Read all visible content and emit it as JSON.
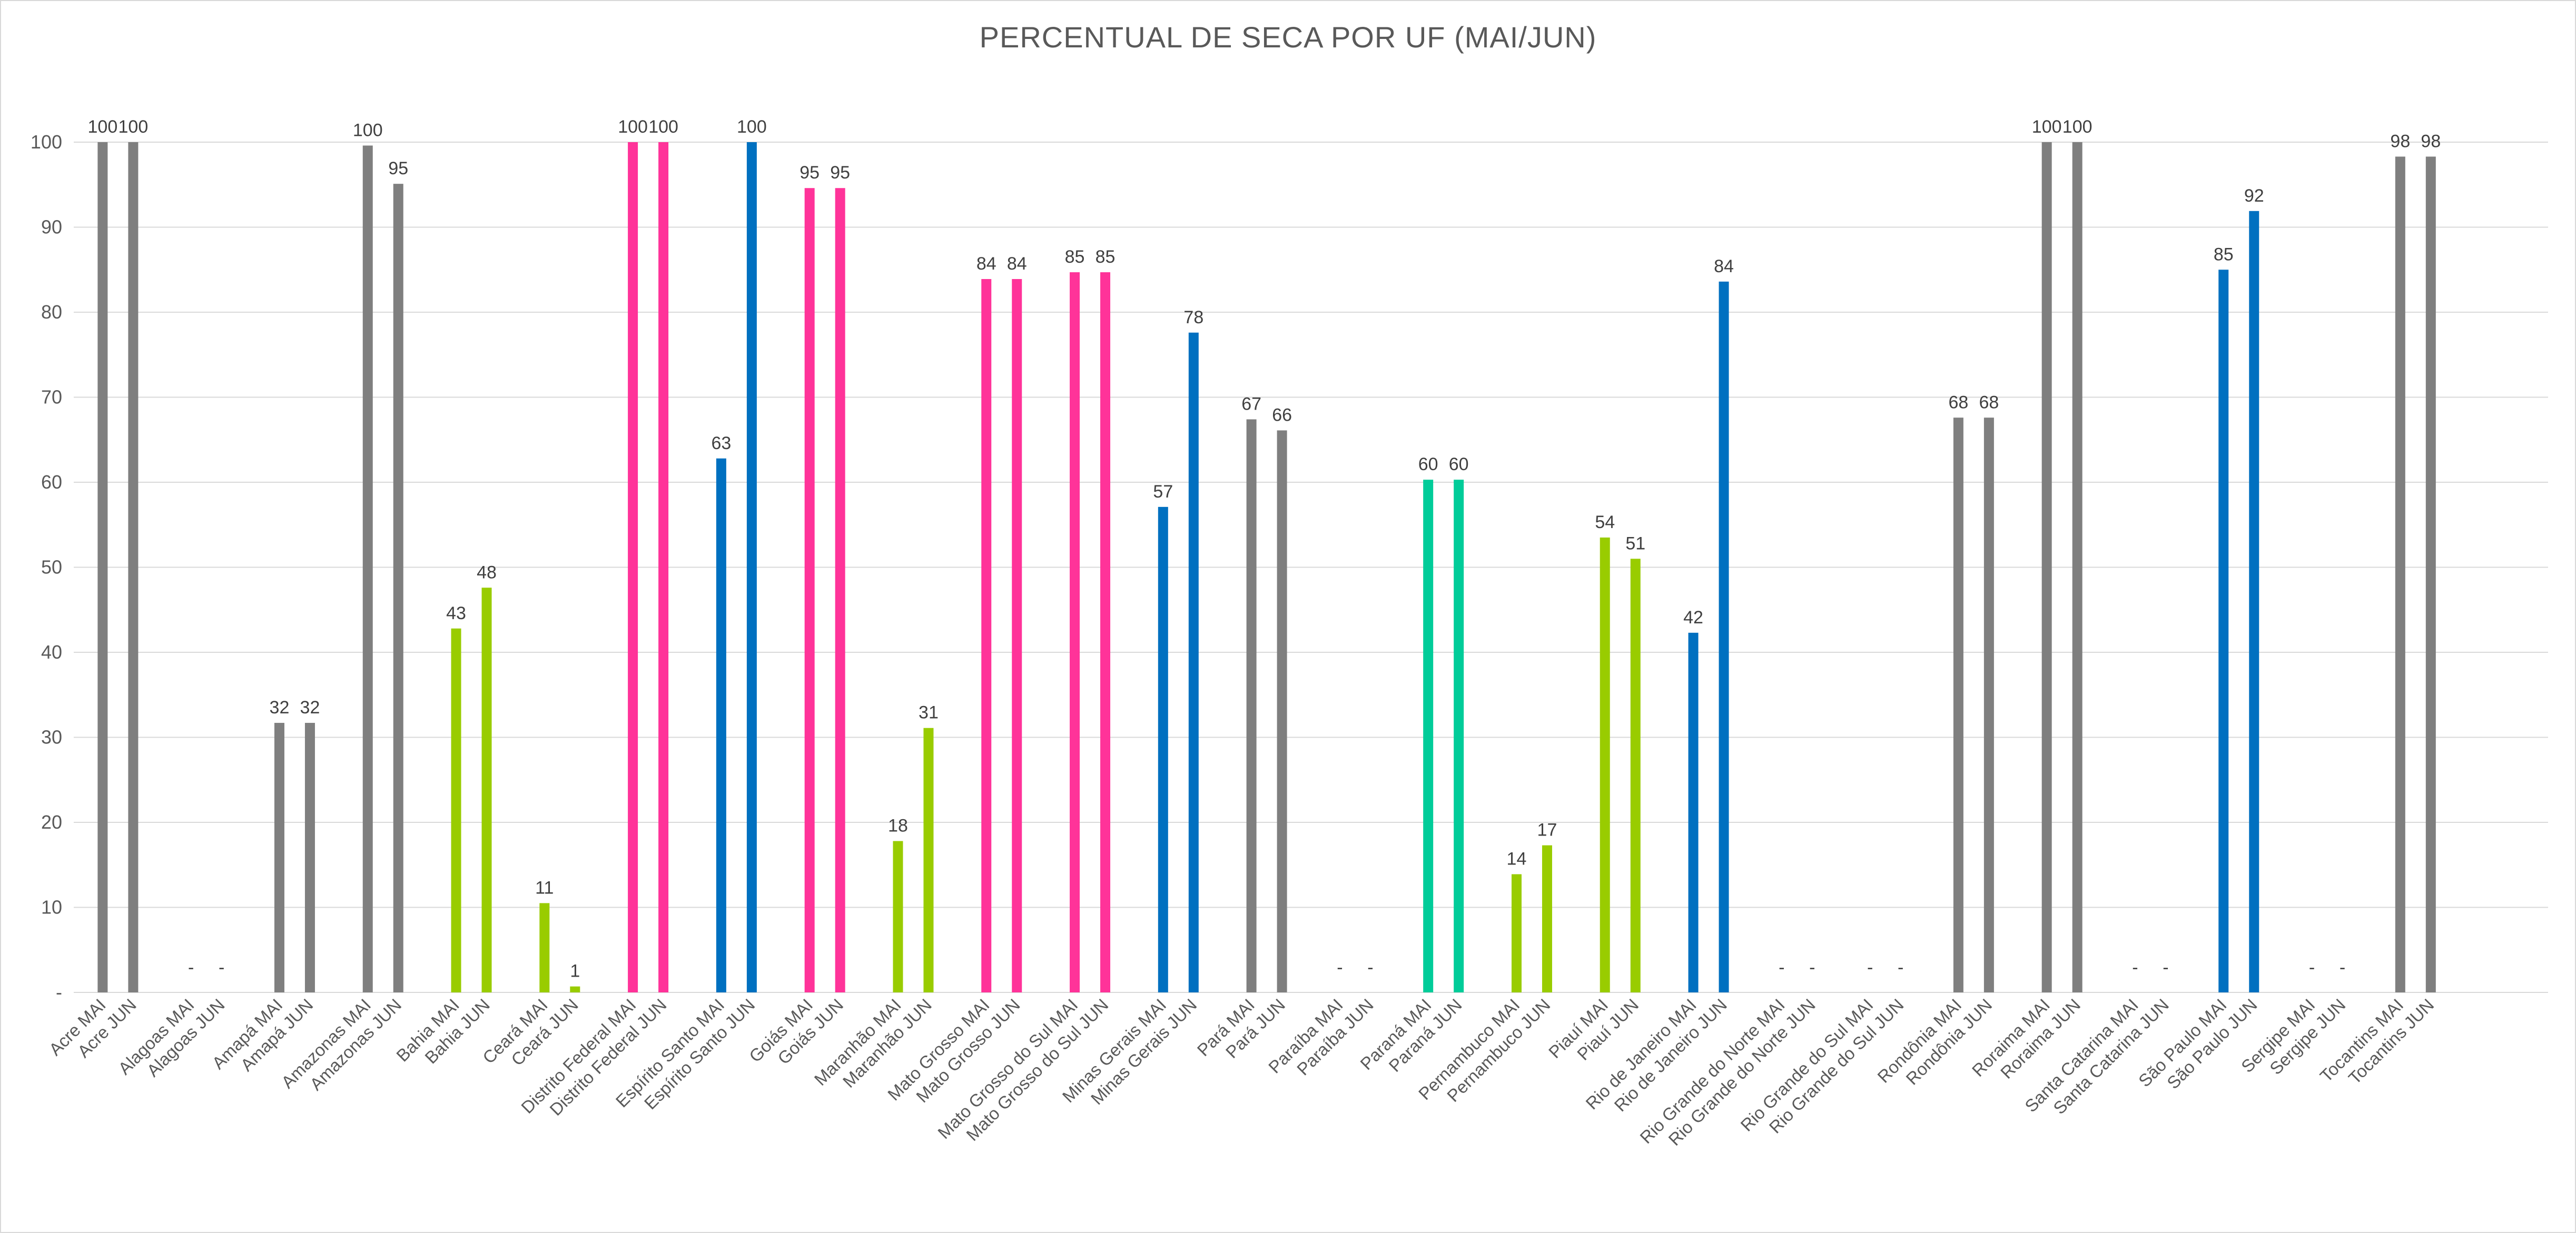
{
  "chart_data": {
    "type": "bar",
    "title": "PERCENTUAL DE SECA POR UF (MAI/JUN)",
    "xlabel": "",
    "ylabel": "",
    "ylim": [
      0,
      100
    ],
    "yticks": [
      "-",
      "10",
      "20",
      "30",
      "40",
      "50",
      "60",
      "70",
      "80",
      "90",
      "100"
    ],
    "grid": true,
    "legend": "none",
    "categories": [
      "Acre MAI",
      "Acre JUN",
      "Alagoas MAI",
      "Alagoas JUN",
      "Amapá MAI",
      "Amapá JUN",
      "Amazonas MAI",
      "Amazonas JUN",
      "Bahia MAI",
      "Bahia JUN",
      "Ceará MAI",
      "Ceará JUN",
      "Distrito Federal MAI",
      "Distrito Federal JUN",
      "Espírito Santo MAI",
      "Espírito Santo JUN",
      "Goiás MAI",
      "Goiás JUN",
      "Maranhão MAI",
      "Maranhão JUN",
      "Mato Grosso MAI",
      "Mato Grosso JUN",
      "Mato Grosso do Sul MAI",
      "Mato Grosso do Sul JUN",
      "Minas Gerais MAI",
      "Minas Gerais JUN",
      "Pará MAI",
      "Pará JUN",
      "Paraíba MAI",
      "Paraíba JUN",
      "Paraná MAI",
      "Paraná JUN",
      "Pernambuco MAI",
      "Pernambuco JUN",
      "Piauí MAI",
      "Piauí JUN",
      "Rio de Janeiro MAI",
      "Rio de Janeiro JUN",
      "Rio Grande do Norte MAI",
      "Rio Grande do Norte JUN",
      "Rio Grande do Sul MAI",
      "Rio Grande do Sul JUN",
      "Rondônia MAI",
      "Rondônia JUN",
      "Roraima MAI",
      "Roraima JUN",
      "Santa Catarina MAI",
      "Santa Catarina JUN",
      "São Paulo MAI",
      "São Paulo JUN",
      "Sergipe MAI",
      "Sergipe JUN",
      "Tocantins MAI",
      "Tocantins JUN"
    ],
    "values": [
      100,
      100,
      0,
      0,
      31.7,
      31.7,
      99.6,
      95.1,
      42.8,
      47.6,
      10.5,
      0.7,
      100,
      100,
      62.8,
      100,
      94.6,
      94.6,
      17.8,
      31.1,
      83.9,
      83.9,
      84.7,
      84.7,
      57.1,
      77.6,
      67.4,
      66.1,
      0,
      0,
      60.3,
      60.3,
      13.9,
      17.3,
      53.5,
      51.0,
      42.3,
      83.6,
      0,
      0,
      0,
      0,
      67.6,
      67.6,
      100,
      100,
      0,
      0,
      85.0,
      91.9,
      0,
      0,
      98.3,
      98.3
    ],
    "data_labels": [
      "100",
      "100",
      "-",
      "-",
      "32",
      "32",
      "100",
      "95",
      "43",
      "48",
      "11",
      "1",
      "100",
      "100",
      "63",
      "100",
      "95",
      "95",
      "18",
      "31",
      "84",
      "84",
      "85",
      "85",
      "57",
      "78",
      "67",
      "66",
      "-",
      "-",
      "60",
      "60",
      "14",
      "17",
      "54",
      "51",
      "42",
      "84",
      "-",
      "-",
      "-",
      "-",
      "68",
      "68",
      "100",
      "100",
      "-",
      "-",
      "85",
      "92",
      "-",
      "-",
      "98",
      "98"
    ],
    "colors": [
      "#7f7f7f",
      "#7f7f7f",
      "#7f7f7f",
      "#7f7f7f",
      "#7f7f7f",
      "#7f7f7f",
      "#7f7f7f",
      "#7f7f7f",
      "#99cc00",
      "#99cc00",
      "#99cc00",
      "#99cc00",
      "#ff3399",
      "#ff3399",
      "#0070c0",
      "#0070c0",
      "#ff3399",
      "#ff3399",
      "#99cc00",
      "#99cc00",
      "#ff3399",
      "#ff3399",
      "#ff3399",
      "#ff3399",
      "#0070c0",
      "#0070c0",
      "#7f7f7f",
      "#7f7f7f",
      "#99cc00",
      "#99cc00",
      "#00cc99",
      "#00cc99",
      "#99cc00",
      "#99cc00",
      "#99cc00",
      "#99cc00",
      "#0070c0",
      "#0070c0",
      "#99cc00",
      "#99cc00",
      "#0070c0",
      "#0070c0",
      "#7f7f7f",
      "#7f7f7f",
      "#7f7f7f",
      "#7f7f7f",
      "#0070c0",
      "#0070c0",
      "#0070c0",
      "#0070c0",
      "#99cc00",
      "#99cc00",
      "#7f7f7f",
      "#7f7f7f"
    ],
    "gridline_color": "#d9d9d9",
    "text_color": "#595959"
  }
}
